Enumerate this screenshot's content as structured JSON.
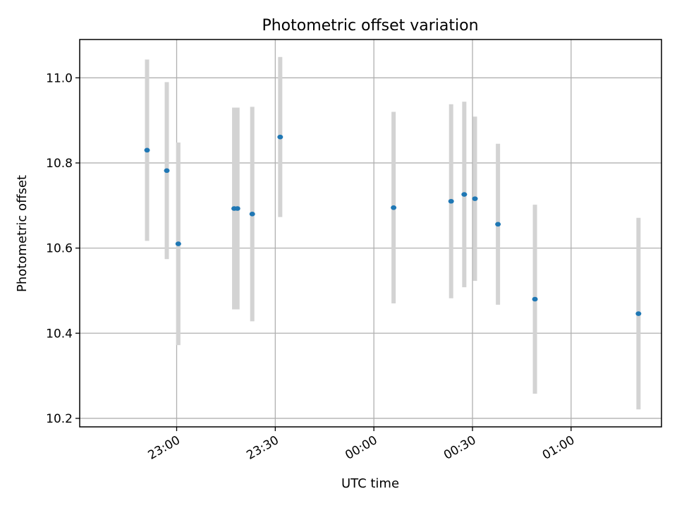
{
  "chart_data": {
    "type": "scatter",
    "title": "Photometric offset variation",
    "xlabel": "UTC time",
    "ylabel": "Photometric offset",
    "grid": true,
    "xlim": [
      "22:30:30",
      "01:27:30"
    ],
    "ylim": [
      10.18,
      11.09
    ],
    "x_ticks": [
      "23:00",
      "23:30",
      "00:00",
      "00:30",
      "01:00"
    ],
    "y_ticks": [
      "10.2",
      "10.4",
      "10.6",
      "10.8",
      "11.0"
    ],
    "marker_color": "#1f77b4",
    "errorbar_color": "#d3d3d3",
    "points": [
      {
        "x": "22:51:00",
        "y": 10.83,
        "yerr": 0.213
      },
      {
        "x": "22:57:00",
        "y": 10.782,
        "yerr": 0.208
      },
      {
        "x": "23:00:30",
        "y": 10.61,
        "yerr": 0.238
      },
      {
        "x": "23:17:30",
        "y": 10.693,
        "yerr": 0.237
      },
      {
        "x": "23:18:30",
        "y": 10.693,
        "yerr": 0.237
      },
      {
        "x": "23:23:00",
        "y": 10.68,
        "yerr": 0.252
      },
      {
        "x": "23:31:30",
        "y": 10.861,
        "yerr": 0.188
      },
      {
        "x": "00:06:00",
        "y": 10.695,
        "yerr": 0.225
      },
      {
        "x": "00:23:30",
        "y": 10.71,
        "yerr": 0.228
      },
      {
        "x": "00:27:30",
        "y": 10.726,
        "yerr": 0.218
      },
      {
        "x": "00:30:45",
        "y": 10.716,
        "yerr": 0.193
      },
      {
        "x": "00:37:45",
        "y": 10.656,
        "yerr": 0.189
      },
      {
        "x": "00:49:00",
        "y": 10.48,
        "yerr": 0.222
      },
      {
        "x": "01:20:30",
        "y": 10.446,
        "yerr": 0.225
      }
    ]
  }
}
